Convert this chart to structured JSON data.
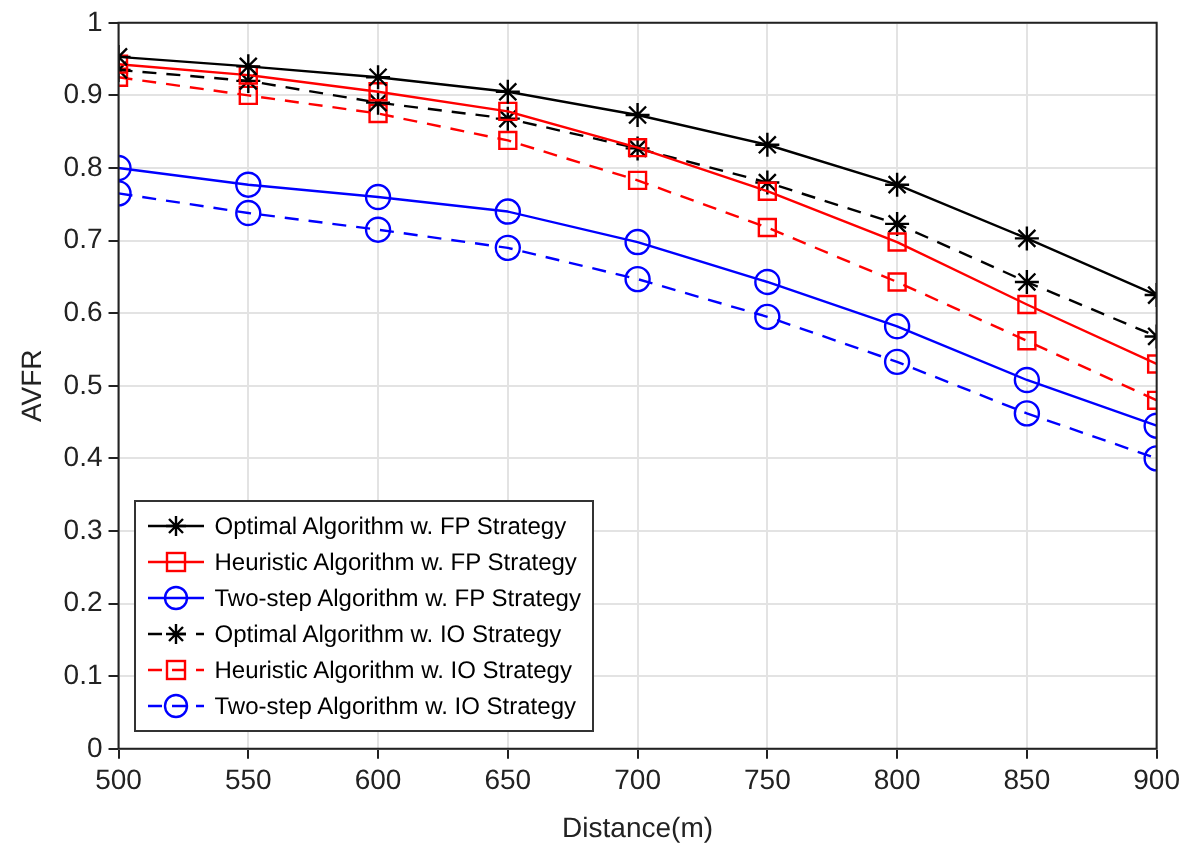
{
  "chart_data": {
    "type": "line",
    "xlabel": "Distance(m)",
    "ylabel": "AVFR",
    "x": [
      500,
      550,
      600,
      650,
      700,
      750,
      800,
      850,
      900
    ],
    "xlim": [
      500,
      900
    ],
    "xticks": [
      500,
      550,
      600,
      650,
      700,
      750,
      800,
      850,
      900
    ],
    "ylim": [
      0,
      1
    ],
    "yticks": [
      0,
      0.1,
      0.2,
      0.3,
      0.4,
      0.5,
      0.6,
      0.7,
      0.8,
      0.9,
      1
    ],
    "grid": true,
    "legend": "bottom left",
    "series": [
      {
        "name": "Optimal Algorithm w. FP Strategy",
        "color": "#000000",
        "marker": "cross",
        "line_style": "solid",
        "values": [
          0.953,
          0.94,
          0.925,
          0.905,
          0.873,
          0.832,
          0.777,
          0.703,
          0.625
        ]
      },
      {
        "name": "Heuristic Algorithm w. FP Strategy",
        "color": "#ff0000",
        "marker": "square",
        "line_style": "solid",
        "values": [
          0.943,
          0.928,
          0.905,
          0.878,
          0.828,
          0.768,
          0.698,
          0.612,
          0.53
        ]
      },
      {
        "name": "Two-step Algorithm w. FP Strategy",
        "color": "#0000ff",
        "marker": "circle",
        "line_style": "solid",
        "values": [
          0.8,
          0.777,
          0.76,
          0.74,
          0.698,
          0.643,
          0.582,
          0.508,
          0.445
        ]
      },
      {
        "name": "Optimal Algorithm w. IO Strategy",
        "color": "#000000",
        "marker": "cross",
        "line_style": "dashed",
        "values": [
          0.935,
          0.92,
          0.89,
          0.868,
          0.827,
          0.78,
          0.723,
          0.643,
          0.568
        ]
      },
      {
        "name": "Heuristic Algorithm w. IO Strategy",
        "color": "#ff0000",
        "marker": "square",
        "line_style": "dashed",
        "values": [
          0.925,
          0.9,
          0.875,
          0.838,
          0.783,
          0.718,
          0.643,
          0.562,
          0.48
        ]
      },
      {
        "name": "Two-step Algorithm w. IO Strategy",
        "color": "#0000ff",
        "marker": "circle",
        "line_style": "dashed",
        "values": [
          0.765,
          0.738,
          0.715,
          0.69,
          0.647,
          0.595,
          0.533,
          0.462,
          0.4
        ]
      }
    ]
  }
}
